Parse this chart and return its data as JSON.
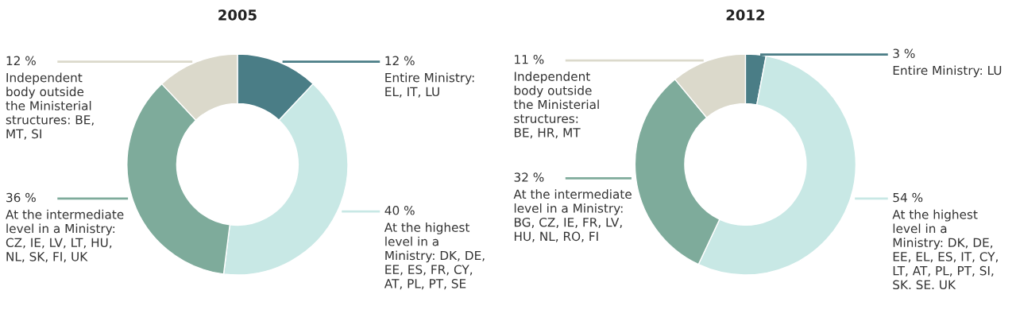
{
  "chart_data": [
    {
      "type": "donut",
      "title": "2005",
      "categories": [
        "Entire Ministry:\nEL, IT, LU",
        "At the highest\nlevel in a\nMinistry: DK, DE,\nEE, ES, FR, CY,\nAT, PL, PT, SE",
        "At the intermediate\nlevel in a Ministry:\nCZ, IE, LV, LT, HU,\nNL, SK, FI, UK",
        "Independent\nbody outside\nthe Ministerial\nstructures: BE,\nMT, SI"
      ],
      "values": [
        12,
        40,
        36,
        12
      ],
      "value_labels": [
        "12 %",
        "40 %",
        "36 %",
        "12 %"
      ],
      "colors": [
        "#4a7d86",
        "#c8e8e5",
        "#7eab9b",
        "#dbd9cb"
      ]
    },
    {
      "type": "donut",
      "title": "2012",
      "categories": [
        "Entire Ministry: LU",
        "At the highest\nlevel in a\nMinistry: DK, DE,\nEE, EL, ES, IT, CY,\nLT, AT, PL, PT, SI,\nSK. SE. UK",
        "At the intermediate\nlevel in a Ministry:\nBG, CZ, IE, FR, LV,\nHU, NL, RO, FI",
        "Independent\nbody outside\nthe Ministerial\nstructures:\nBE, HR, MT"
      ],
      "values": [
        3,
        54,
        32,
        11
      ],
      "value_labels": [
        "3 %",
        "54 %",
        "32 %",
        "11 %"
      ],
      "colors": [
        "#4a7d86",
        "#c8e8e5",
        "#7eab9b",
        "#dbd9cb"
      ]
    }
  ]
}
